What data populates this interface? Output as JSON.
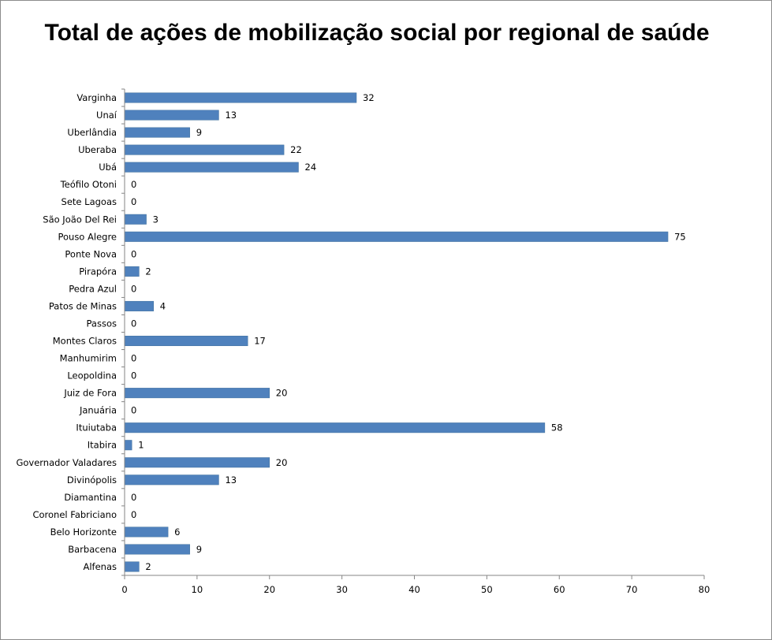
{
  "chart_data": {
    "type": "bar",
    "orientation": "horizontal",
    "title": "Total de ações de mobilização social por regional de saúde",
    "xlabel": "",
    "ylabel": "",
    "categories": [
      "Varginha",
      "Unaí",
      "Uberlândia",
      "Uberaba",
      "Ubá",
      "Teófilo Otoni",
      "Sete Lagoas",
      "São João Del Rei",
      "Pouso Alegre",
      "Ponte Nova",
      "Pirapóra",
      "Pedra Azul",
      "Patos de Minas",
      "Passos",
      "Montes Claros",
      "Manhumirim",
      "Leopoldina",
      "Juiz de Fora",
      "Januária",
      "Ituiutaba",
      "Itabira",
      "Governador Valadares",
      "Divinópolis",
      "Diamantina",
      "Coronel Fabriciano",
      "Belo Horizonte",
      "Barbacena",
      "Alfenas"
    ],
    "values": [
      32,
      13,
      9,
      22,
      24,
      0,
      0,
      3,
      75,
      0,
      2,
      0,
      4,
      0,
      17,
      0,
      0,
      20,
      0,
      58,
      1,
      20,
      13,
      0,
      0,
      6,
      9,
      2
    ],
    "xlim": [
      0,
      80
    ],
    "xticks": [
      0,
      10,
      20,
      30,
      40,
      50,
      60,
      70,
      80
    ],
    "bar_color": "#4f81bd",
    "grid": false,
    "data_labels": true
  }
}
